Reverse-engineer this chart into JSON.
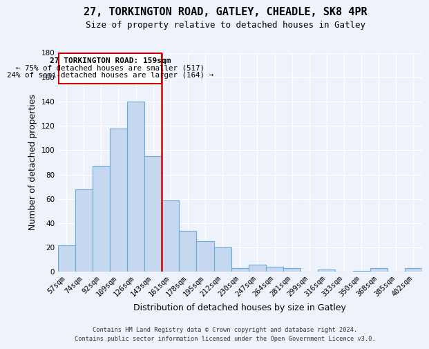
{
  "title": "27, TORKINGTON ROAD, GATLEY, CHEADLE, SK8 4PR",
  "subtitle": "Size of property relative to detached houses in Gatley",
  "xlabel": "Distribution of detached houses by size in Gatley",
  "ylabel": "Number of detached properties",
  "bar_labels": [
    "57sqm",
    "74sqm",
    "92sqm",
    "109sqm",
    "126sqm",
    "143sqm",
    "161sqm",
    "178sqm",
    "195sqm",
    "212sqm",
    "230sqm",
    "247sqm",
    "264sqm",
    "281sqm",
    "299sqm",
    "316sqm",
    "333sqm",
    "350sqm",
    "368sqm",
    "385sqm",
    "402sqm"
  ],
  "bar_values": [
    22,
    68,
    87,
    118,
    140,
    95,
    59,
    34,
    25,
    20,
    3,
    6,
    4,
    3,
    0,
    2,
    0,
    1,
    3,
    0,
    3
  ],
  "bar_color": "#c5d8f0",
  "bar_edge_color": "#6aaad4",
  "vline_color": "#cc0000",
  "annotation_title": "27 TORKINGTON ROAD: 159sqm",
  "annotation_line1": "← 75% of detached houses are smaller (517)",
  "annotation_line2": "24% of semi-detached houses are larger (164) →",
  "annotation_box_color": "#ffffff",
  "annotation_box_edge": "#cc0000",
  "footer_line1": "Contains HM Land Registry data © Crown copyright and database right 2024.",
  "footer_line2": "Contains public sector information licensed under the Open Government Licence v3.0.",
  "ylim": [
    0,
    180
  ],
  "yticks": [
    0,
    20,
    40,
    60,
    80,
    100,
    120,
    140,
    160,
    180
  ],
  "background_color": "#edf2fb",
  "grid_color": "#ffffff",
  "title_fontsize": 11,
  "subtitle_fontsize": 9,
  "ylabel_fontsize": 9,
  "xlabel_fontsize": 9,
  "tick_fontsize": 7.5
}
